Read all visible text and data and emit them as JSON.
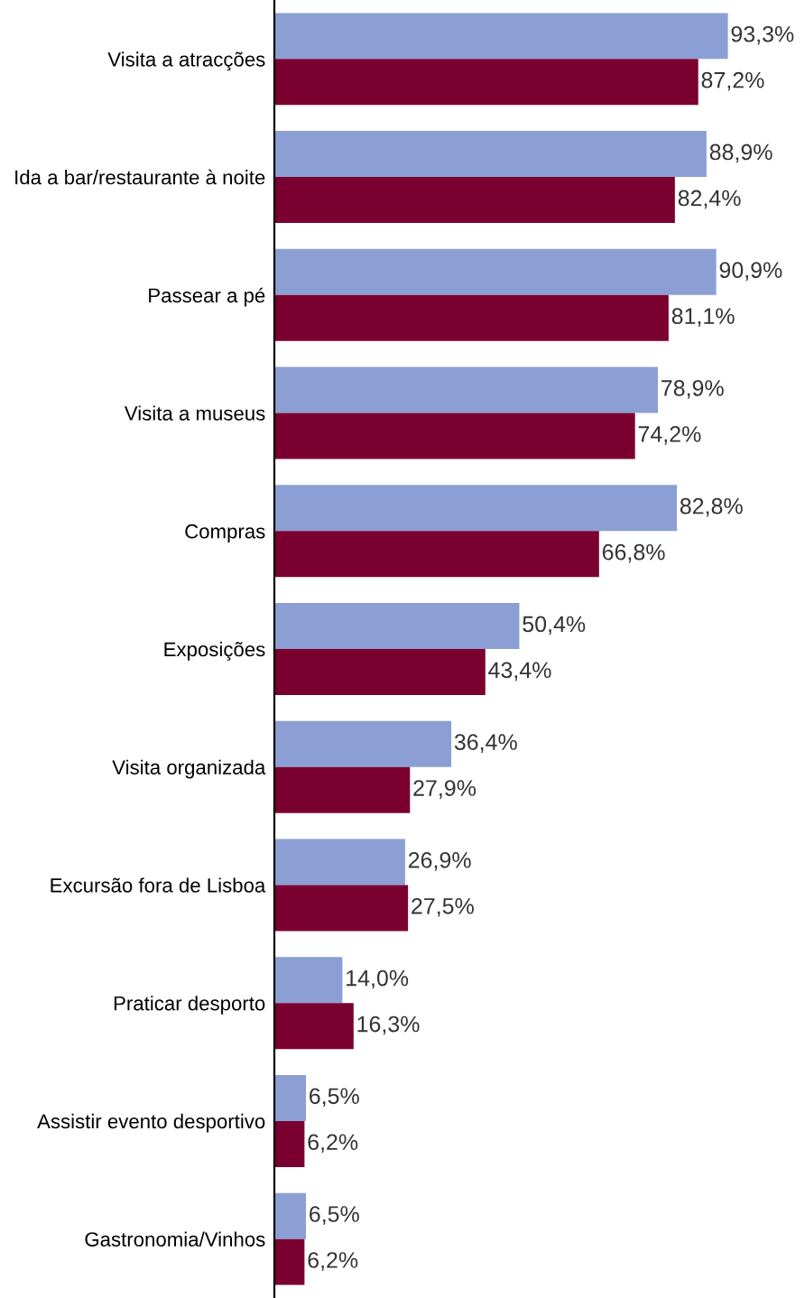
{
  "chart_data": {
    "type": "bar",
    "orientation": "horizontal",
    "tick_labels": "y",
    "categories": [
      "Visita a atracções",
      "Ida a bar/restaurante à noite",
      "Passear a pé",
      "Visita a museus",
      "Compras",
      "Exposições",
      "Visita organizada",
      "Excursão fora de Lisboa",
      "Praticar desporto",
      "Assistir evento desportivo",
      "Gastronomia/Vinhos"
    ],
    "series": [
      {
        "color": "#8c9fd4",
        "values": [
          93.3,
          88.9,
          90.9,
          78.9,
          82.8,
          50.4,
          36.4,
          26.9,
          14.0,
          6.5,
          6.5
        ],
        "value_labels": [
          "93,3%",
          "88,9%",
          "90,9%",
          "78,9%",
          "82,8%",
          "50,4%",
          "36,4%",
          "26,9%",
          "14,0%",
          "6,5%",
          "6,5%"
        ]
      },
      {
        "color": "#7a0030",
        "values": [
          87.2,
          82.4,
          81.1,
          74.2,
          66.8,
          43.4,
          27.9,
          27.5,
          16.3,
          6.2,
          6.2
        ],
        "value_labels": [
          "87,2%",
          "82,4%",
          "81,1%",
          "74,2%",
          "66,8%",
          "43,4%",
          "27,9%",
          "27,5%",
          "16,3%",
          "6,2%",
          "6,2%"
        ]
      }
    ]
  }
}
